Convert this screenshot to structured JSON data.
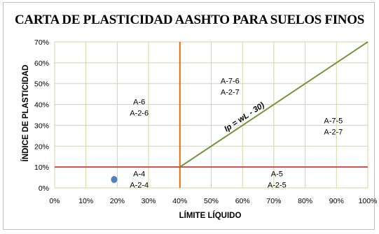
{
  "chart_data": {
    "type": "scatter",
    "title": "CARTA DE PLASTICIDAD AASHTO PARA SUELOS FINOS",
    "xlabel": "LÍMITE LÍQUIDO",
    "ylabel": "ÍNDICE DE PLASTICIDAD",
    "xlim": [
      0,
      100
    ],
    "ylim": [
      0,
      70
    ],
    "x_ticks": [
      "0%",
      "10%",
      "20%",
      "30%",
      "40%",
      "50%",
      "60%",
      "70%",
      "80%",
      "90%",
      "100%"
    ],
    "y_ticks": [
      "0%",
      "10%",
      "20%",
      "30%",
      "40%",
      "50%",
      "60%",
      "70%"
    ],
    "grid": true,
    "points": [
      {
        "x": 19,
        "y": 4
      }
    ],
    "reference_lines": {
      "vertical_ll": 40,
      "horizontal_ip": 10,
      "diagonal": {
        "x": [
          40,
          100
        ],
        "y": [
          10,
          70
        ],
        "label": "Ip = wL - 30)"
      }
    },
    "zones": [
      {
        "line1": "A-6",
        "line2": "A-2-6",
        "x": 27,
        "y": 40
      },
      {
        "line1": "A-7-6",
        "line2": "A-2-7",
        "x": 56,
        "y": 50
      },
      {
        "line1": "A-7-5",
        "line2": "A-2-7",
        "x": 89,
        "y": 31
      },
      {
        "line1": "A-4",
        "line2": "A-2-4",
        "x": 27,
        "y": 5.5
      },
      {
        "line1": "A-5",
        "line2": "A-2-5",
        "x": 71,
        "y": 5.5
      }
    ],
    "colors": {
      "grid": "#d6d3a2",
      "vertical_line": "#e46c0a",
      "horizontal_line": "#c0504d",
      "diagonal_line": "#77933c",
      "point": "#4f81bd"
    }
  }
}
